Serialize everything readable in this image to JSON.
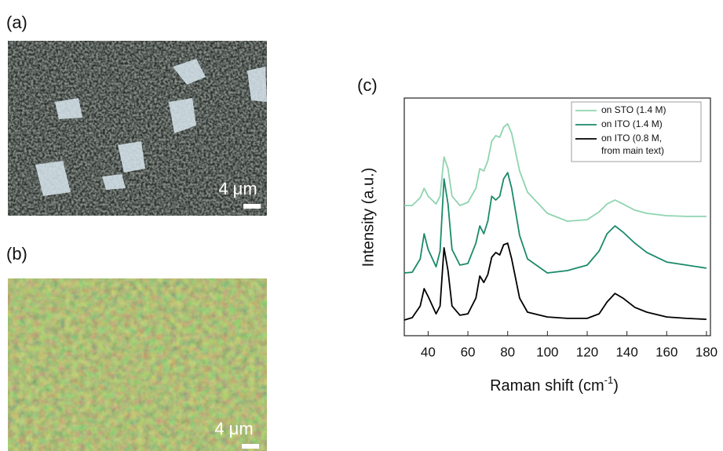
{
  "panels": {
    "a": {
      "label": "(a)",
      "scale": "4 μm"
    },
    "b": {
      "label": "(b)",
      "scale": "4 μm"
    }
  },
  "chart_data": {
    "type": "line",
    "label": "(c)",
    "xlabel": [
      "Raman shift (cm",
      "-1",
      ")"
    ],
    "ylabel": "Intensity (a.u.)",
    "x": [
      28,
      32,
      36,
      38,
      40,
      44,
      46,
      48,
      50,
      52,
      56,
      60,
      64,
      66,
      68,
      70,
      72,
      74,
      76,
      78,
      80,
      82,
      86,
      90,
      100,
      110,
      120,
      126,
      130,
      134,
      138,
      144,
      150,
      160,
      170,
      180
    ],
    "series": [
      {
        "name": "on STO  (1.4 M)",
        "color": "#8fd4b0",
        "values": [
          54.8,
          54.8,
          58.1,
          62.0,
          58.7,
          55.4,
          58.7,
          75.2,
          70.3,
          58.7,
          54.8,
          56.1,
          62.0,
          70.3,
          69.3,
          73.6,
          81.8,
          84.2,
          83.5,
          87.8,
          89.1,
          85.1,
          69.3,
          60.4,
          51.5,
          48.2,
          48.8,
          52.1,
          55.4,
          57.1,
          55.4,
          52.8,
          51.5,
          50.5,
          50.2,
          50.2
        ]
      },
      {
        "name": "on ITO (1.4 M)",
        "color": "#1a8a6a",
        "values": [
          26.4,
          26.7,
          32.3,
          42.9,
          36.3,
          29.0,
          35.6,
          66.0,
          55.4,
          36.3,
          29.7,
          30.4,
          38.9,
          46.2,
          42.9,
          48.2,
          58.7,
          57.1,
          58.7,
          66.0,
          68.6,
          62.0,
          42.2,
          32.3,
          26.4,
          27.4,
          29.7,
          35.6,
          42.9,
          46.2,
          43.6,
          38.9,
          35.0,
          31.0,
          29.7,
          28.4
        ]
      },
      {
        "name": [
          "on ITO (0.8 M,",
          "from main text)"
        ],
        "color": "#000000",
        "values": [
          6.6,
          7.6,
          12.5,
          19.8,
          16.5,
          9.2,
          12.5,
          37.0,
          27.4,
          12.5,
          8.6,
          9.2,
          15.8,
          25.1,
          22.4,
          25.7,
          33.0,
          35.0,
          34.0,
          38.3,
          38.9,
          32.3,
          15.8,
          9.9,
          7.9,
          7.3,
          7.3,
          9.2,
          14.2,
          17.8,
          15.8,
          11.9,
          9.9,
          7.9,
          7.3,
          6.9
        ]
      }
    ],
    "xlim": [
      28,
      182
    ],
    "ylim": [
      0,
      100
    ],
    "xticks": [
      40,
      60,
      80,
      100,
      120,
      140,
      160,
      180
    ]
  }
}
